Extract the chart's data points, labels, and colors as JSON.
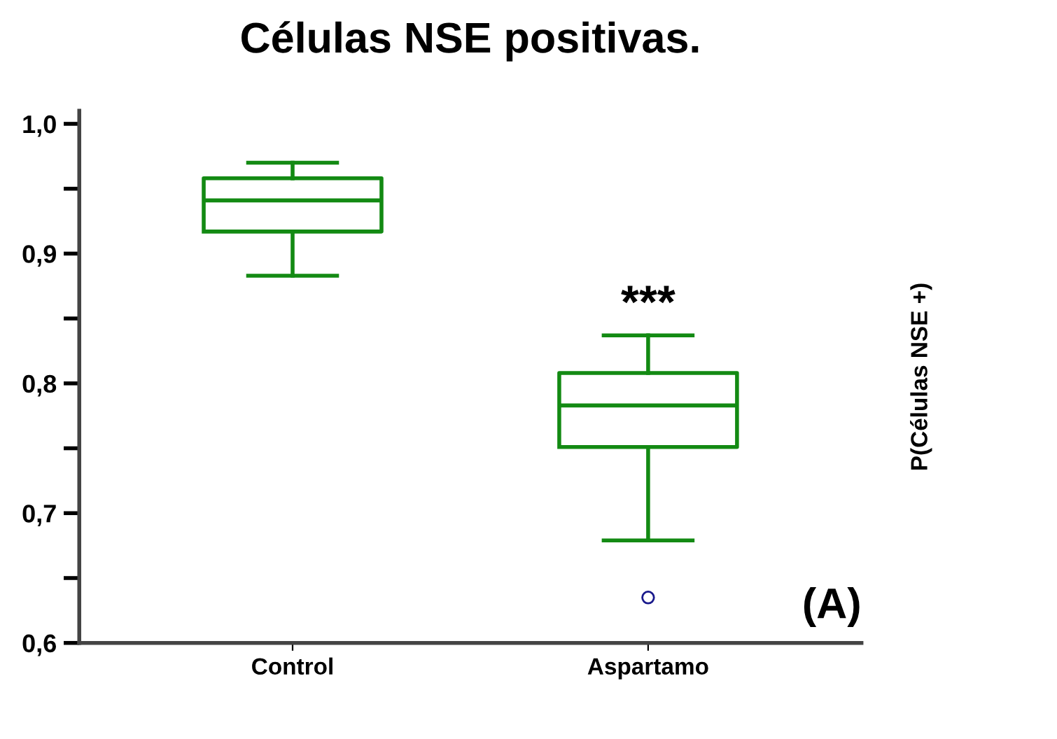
{
  "chart_data": {
    "type": "box",
    "title": "Células NSE positivas.",
    "ylabel": "P(Células NSE +)",
    "categories": [
      "Control",
      "Aspartamo"
    ],
    "boxes": [
      {
        "low": 0.883,
        "q1": 0.917,
        "median": 0.941,
        "q3": 0.958,
        "high": 0.97
      },
      {
        "low": 0.679,
        "q1": 0.751,
        "median": 0.783,
        "q3": 0.808,
        "high": 0.837,
        "outliers": [
          0.635
        ]
      }
    ],
    "color": "#138a13",
    "ylim": [
      0.6,
      1.01
    ],
    "yticks": [
      {
        "value": 0.6,
        "label": "0,6"
      },
      {
        "value": 0.65,
        "label": null
      },
      {
        "value": 0.7,
        "label": "0,7"
      },
      {
        "value": 0.75,
        "label": null
      },
      {
        "value": 0.8,
        "label": "0,8"
      },
      {
        "value": 0.85,
        "label": null
      },
      {
        "value": 0.9,
        "label": "0,9"
      },
      {
        "value": 0.95,
        "label": null
      },
      {
        "value": 1.0,
        "label": "1,0"
      }
    ],
    "grid": false,
    "annotations": [
      "***",
      "(A)"
    ]
  }
}
